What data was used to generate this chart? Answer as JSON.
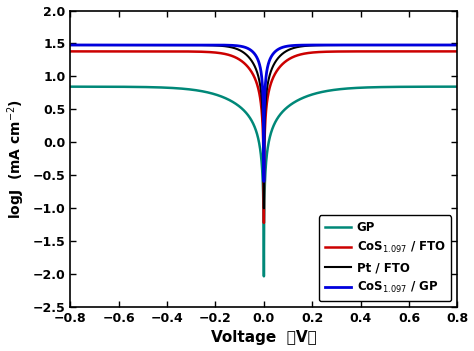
{
  "title": "",
  "xlabel": "Voltage （V）",
  "ylabel": "logJ  (mA cm$^{-2}$)",
  "xlim": [
    -0.8,
    0.8
  ],
  "ylim": [
    -2.5,
    2.0
  ],
  "yticks": [
    -2.5,
    -2.0,
    -1.5,
    -1.0,
    -0.5,
    0.0,
    0.5,
    1.0,
    1.5,
    2.0
  ],
  "xticks": [
    -0.8,
    -0.6,
    -0.4,
    -0.2,
    0.0,
    0.2,
    0.4,
    0.6,
    0.8
  ],
  "curves": {
    "Pt_FTO": {
      "color": "#000000",
      "linewidth": 1.5
    },
    "CoS_FTO": {
      "color": "#cc0000",
      "linewidth": 1.8
    },
    "CoS_GP": {
      "color": "#0000dd",
      "linewidth": 2.0
    },
    "GP": {
      "color": "#008878",
      "linewidth": 1.8
    }
  },
  "curve_params": {
    "Pt_FTO": {
      "j0": 25.0,
      "jlim": 30.0,
      "alpha": 0.04
    },
    "CoS_FTO": {
      "j0": 18.0,
      "jlim": 24.0,
      "alpha": 0.048
    },
    "CoS_GP": {
      "j0": 45.0,
      "jlim": 30.0,
      "alpha": 0.028
    },
    "GP": {
      "j0": 5.5,
      "jlim": 7.0,
      "alpha": 0.095
    }
  },
  "legend": {
    "Pt_FTO": "Pt / FTO",
    "CoS_FTO": "CoS$_{1.097}$ / FTO",
    "CoS_GP": "CoS$_{1.097}$ / GP",
    "GP": "GP"
  },
  "background_color": "#ffffff",
  "draw_order": [
    "GP",
    "CoS_FTO",
    "Pt_FTO",
    "CoS_GP"
  ]
}
